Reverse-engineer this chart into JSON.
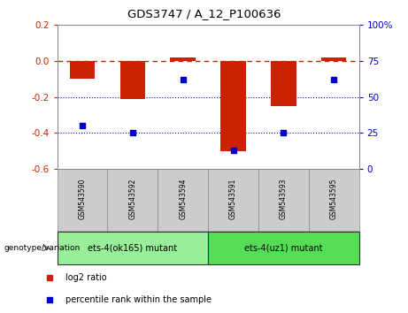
{
  "title": "GDS3747 / A_12_P100636",
  "samples": [
    "GSM543590",
    "GSM543592",
    "GSM543594",
    "GSM543591",
    "GSM543593",
    "GSM543595"
  ],
  "log2_ratio": [
    -0.1,
    -0.21,
    0.02,
    -0.5,
    -0.25,
    0.02
  ],
  "percentile_rank": [
    30,
    25,
    62,
    13,
    25,
    62
  ],
  "ylim_left": [
    -0.6,
    0.2
  ],
  "ylim_right": [
    0,
    100
  ],
  "yticks_left": [
    -0.6,
    -0.4,
    -0.2,
    0.0,
    0.2
  ],
  "yticks_right": [
    0,
    25,
    50,
    75,
    100
  ],
  "bar_color": "#cc2200",
  "dot_color": "#0000cc",
  "group1_label": "ets-4(ok165) mutant",
  "group2_label": "ets-4(uz1) mutant",
  "group1_indices": [
    0,
    1,
    2
  ],
  "group2_indices": [
    3,
    4,
    5
  ],
  "group1_color": "#99ee99",
  "group2_color": "#55dd55",
  "legend_bar_label": "log2 ratio",
  "legend_dot_label": "percentile rank within the sample",
  "genotype_label": "genotype/variation",
  "hline_color": "#cc2200",
  "dotline_color": "#000099",
  "plot_bg_color": "#ffffff",
  "sample_box_color": "#cccccc",
  "sample_box_edge": "#888888"
}
